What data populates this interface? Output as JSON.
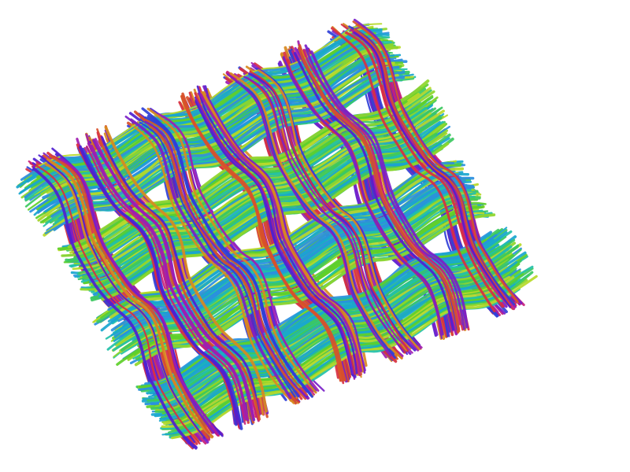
{
  "image": {
    "subject": "woven-fiber-tractography-render",
    "background": "#ffffff",
    "palette": {
      "warp": [
        "#5ecf2a",
        "#8fd62a",
        "#b7d928",
        "#22c0a8",
        "#19a6cf",
        "#2a8fe0",
        "#3cc860"
      ],
      "weft": [
        "#7a1fc8",
        "#a01cb0",
        "#c8207a",
        "#d83040",
        "#d8502a",
        "#d88a20",
        "#3040d8",
        "#5020d0"
      ]
    },
    "weave": {
      "warp_rows": 4,
      "weft_columns": 7
    }
  }
}
